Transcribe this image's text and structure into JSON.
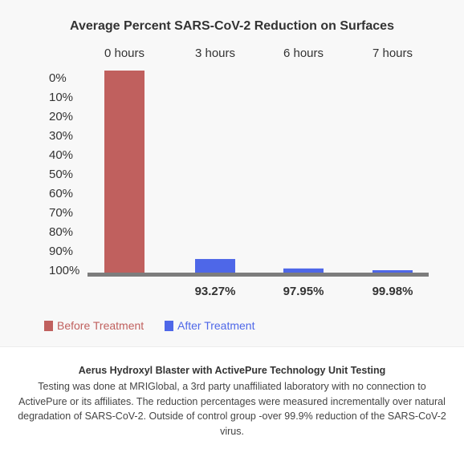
{
  "colors": {
    "before": "#c0605e",
    "after": "#4e67e8",
    "baseline": "#7d7d7d",
    "panel_bg": "#f8f8f8"
  },
  "chart_data": {
    "type": "bar",
    "title": "Average Percent SARS-CoV-2 Reduction on Surfaces",
    "categories": [
      "0 hours",
      "3 hours",
      "6 hours",
      "7 hours"
    ],
    "y_ticks": [
      "0%",
      "10%",
      "20%",
      "30%",
      "40%",
      "50%",
      "60%",
      "70%",
      "80%",
      "90%",
      "100%"
    ],
    "ylim": [
      0,
      100
    ],
    "y_inverted": true,
    "grid": false,
    "legend_position": "bottom-left",
    "series": [
      {
        "name": "Before Treatment",
        "values": [
          100,
          null,
          null,
          null
        ]
      },
      {
        "name": "After Treatment",
        "values": [
          null,
          93.27,
          97.95,
          99.98
        ]
      }
    ],
    "data_labels": [
      "",
      "93.27%",
      "97.95%",
      "99.98%"
    ]
  },
  "caption": {
    "title": "Aerus Hydroxyl Blaster with ActivePure Technology Unit Testing",
    "body": "Testing was done at MRIGlobal, a 3rd party unaffiliated laboratory with no connection to ActivePure or its affiliates. The reduction percentages were measured incrementally over natural degradation of SARS-CoV-2. Outside of control group -over 99.9% reduction of the SARS-CoV-2 virus."
  }
}
